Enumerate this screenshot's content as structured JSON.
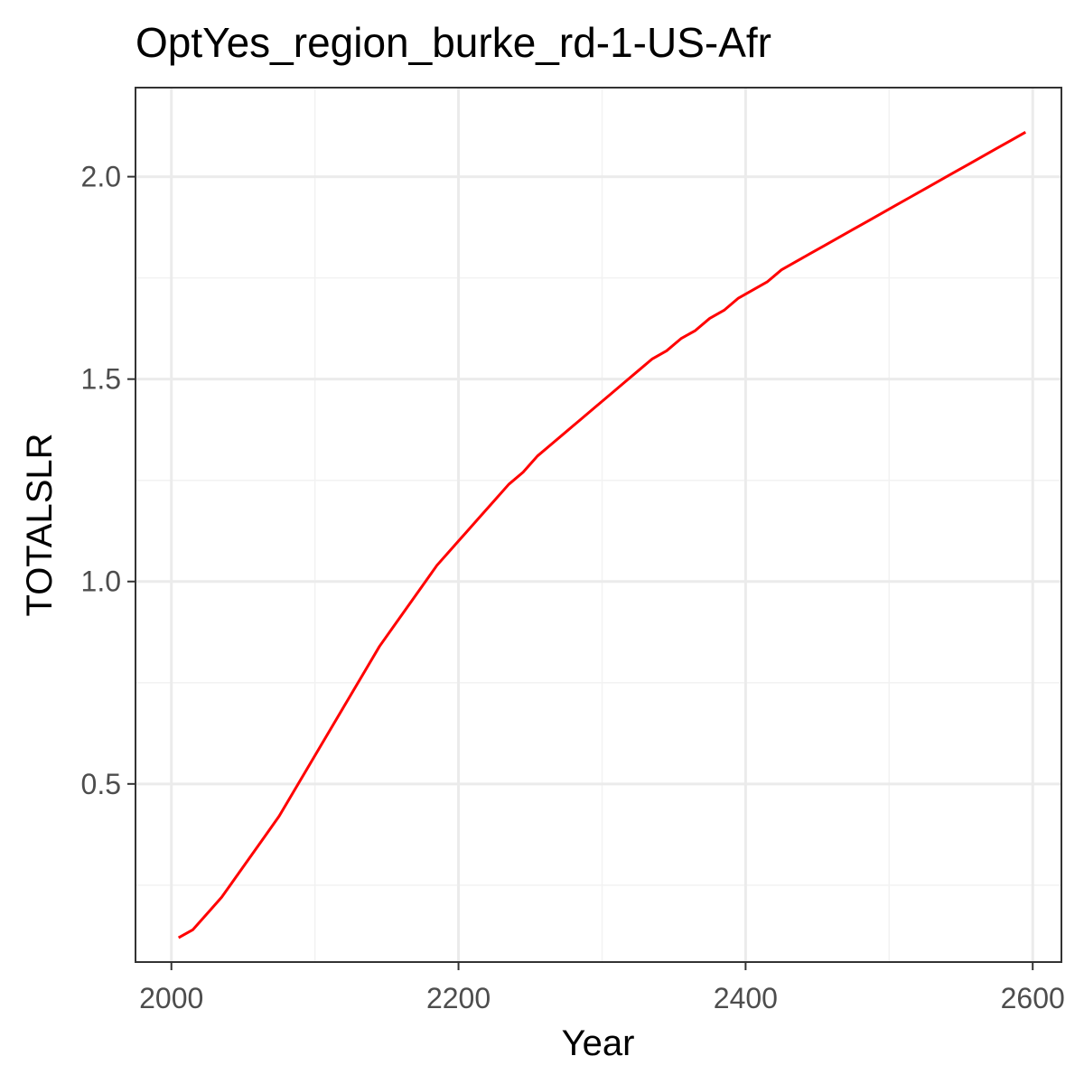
{
  "chart_data": {
    "type": "line",
    "title": "OptYes_region_burke_rd-1-US-Afr",
    "xlabel": "Year",
    "ylabel": "TOTALSLR",
    "xlim": [
      1975,
      2620
    ],
    "ylim": [
      0.06,
      2.22
    ],
    "x_ticks": [
      2000,
      2200,
      2400,
      2600
    ],
    "x_tick_labels": [
      "2000",
      "2200",
      "2400",
      "2600"
    ],
    "y_ticks": [
      0.5,
      1.0,
      1.5,
      2.0
    ],
    "y_tick_labels": [
      "0.5",
      "1.0",
      "1.5",
      "2.0"
    ],
    "grid": true,
    "legend": "none",
    "series": [
      {
        "color": "#ff0000",
        "x": [
          2005,
          2015,
          2025,
          2035,
          2045,
          2055,
          2065,
          2075,
          2085,
          2095,
          2105,
          2115,
          2125,
          2135,
          2145,
          2155,
          2165,
          2175,
          2185,
          2195,
          2205,
          2215,
          2225,
          2235,
          2245,
          2255,
          2265,
          2275,
          2285,
          2295,
          2305,
          2315,
          2325,
          2335,
          2345,
          2355,
          2365,
          2375,
          2385,
          2395,
          2405,
          2415,
          2425,
          2435,
          2445,
          2455,
          2465,
          2475,
          2485,
          2495,
          2505,
          2515,
          2525,
          2535,
          2545,
          2555,
          2565,
          2575,
          2585,
          2595
        ],
        "values": [
          0.12,
          0.14,
          0.18,
          0.22,
          0.27,
          0.32,
          0.37,
          0.42,
          0.48,
          0.54,
          0.6,
          0.66,
          0.72,
          0.78,
          0.84,
          0.89,
          0.94,
          0.99,
          1.04,
          1.08,
          1.12,
          1.16,
          1.2,
          1.24,
          1.27,
          1.31,
          1.34,
          1.37,
          1.4,
          1.43,
          1.46,
          1.49,
          1.52,
          1.55,
          1.57,
          1.6,
          1.62,
          1.65,
          1.67,
          1.7,
          1.72,
          1.74,
          1.77,
          1.79,
          1.81,
          1.83,
          1.85,
          1.87,
          1.89,
          1.91,
          1.93,
          1.95,
          1.97,
          1.99,
          2.01,
          2.03,
          2.05,
          2.07,
          2.09,
          2.11
        ]
      }
    ]
  }
}
